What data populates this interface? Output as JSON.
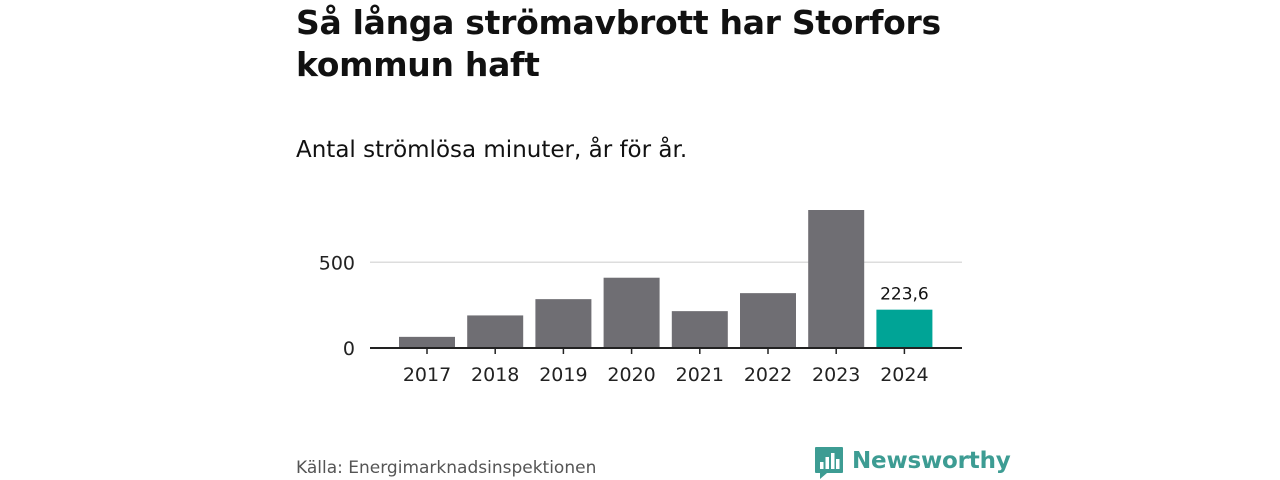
{
  "title": "Så långa strömavbrott har Storfors kommun haft",
  "subtitle": "Antal strömlösa minuter, år för år.",
  "source": "Källa: Energimarknadsinspektionen",
  "brand": {
    "name": "Newsworthy",
    "icon": "newsworthy-logo-icon",
    "color": "#3d9c93"
  },
  "chart_data": {
    "type": "bar",
    "categories": [
      "2017",
      "2018",
      "2019",
      "2020",
      "2021",
      "2022",
      "2023",
      "2024"
    ],
    "values": [
      65,
      190,
      285,
      410,
      215,
      320,
      805,
      223.6
    ],
    "highlight_index": 7,
    "highlight_label": "223,6",
    "yticks": [
      0,
      500
    ],
    "ytick_labels": [
      "0",
      "500"
    ],
    "ylim": [
      0,
      805
    ],
    "grid": true,
    "colors": {
      "bar": "#6f6e73",
      "highlight": "#00a496",
      "grid": "#dddddd",
      "axis": "#222222"
    }
  }
}
